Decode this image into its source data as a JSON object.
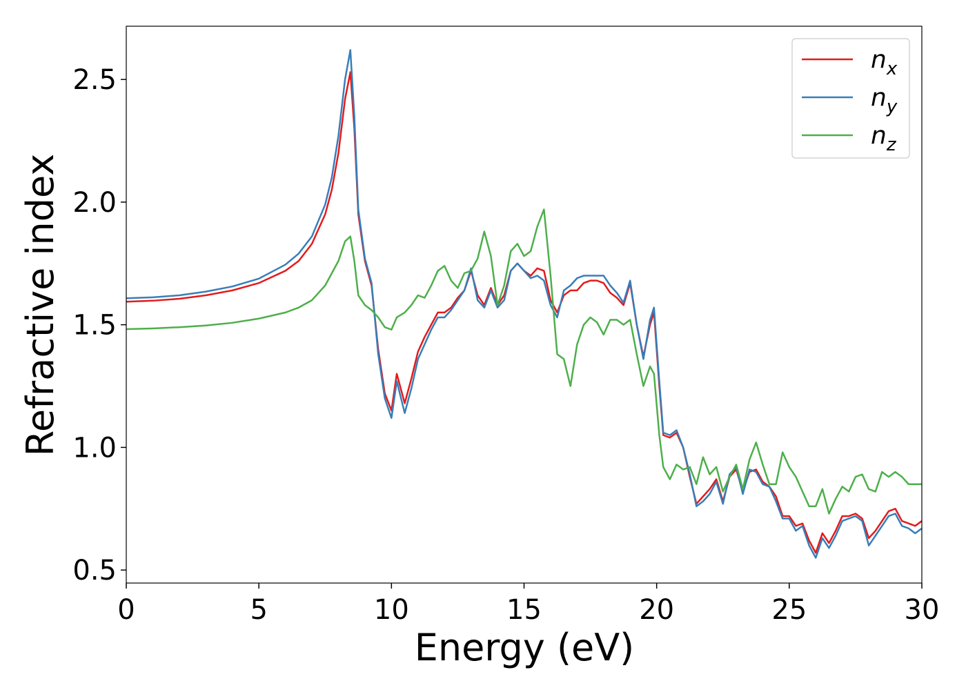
{
  "chart_data": {
    "type": "line",
    "xlabel": "Energy (eV)",
    "ylabel": "Refractive index",
    "x": [
      0,
      1,
      2,
      3,
      4,
      5,
      6,
      6.5,
      7,
      7.5,
      7.75,
      8,
      8.25,
      8.45,
      8.6,
      8.75,
      9,
      9.25,
      9.5,
      9.75,
      10,
      10.2,
      10.5,
      10.75,
      11,
      11.25,
      11.5,
      11.75,
      12,
      12.25,
      12.5,
      12.75,
      13,
      13.25,
      13.5,
      13.75,
      14,
      14.25,
      14.5,
      14.75,
      15,
      15.25,
      15.5,
      15.75,
      16,
      16.25,
      16.5,
      16.75,
      17,
      17.25,
      17.5,
      17.75,
      18,
      18.25,
      18.5,
      18.75,
      19,
      19.25,
      19.5,
      19.75,
      19.9,
      20.1,
      20.25,
      20.5,
      20.75,
      21,
      21.25,
      21.5,
      21.75,
      22,
      22.25,
      22.5,
      22.75,
      23,
      23.25,
      23.5,
      23.75,
      24,
      24.25,
      24.5,
      24.75,
      25,
      25.25,
      25.5,
      25.75,
      26,
      26.25,
      26.5,
      26.75,
      27,
      27.25,
      27.5,
      27.75,
      28,
      28.25,
      28.5,
      28.75,
      29,
      29.25,
      29.5,
      29.75,
      30
    ],
    "series": [
      {
        "name": "nx",
        "color": "#e41a1c",
        "values": [
          1.594,
          1.598,
          1.606,
          1.62,
          1.64,
          1.67,
          1.72,
          1.76,
          1.83,
          1.95,
          2.05,
          2.2,
          2.42,
          2.53,
          2.3,
          1.95,
          1.76,
          1.66,
          1.4,
          1.22,
          1.15,
          1.3,
          1.18,
          1.28,
          1.39,
          1.45,
          1.5,
          1.55,
          1.55,
          1.57,
          1.61,
          1.64,
          1.72,
          1.62,
          1.58,
          1.65,
          1.58,
          1.62,
          1.72,
          1.75,
          1.72,
          1.7,
          1.73,
          1.72,
          1.6,
          1.55,
          1.62,
          1.64,
          1.64,
          1.67,
          1.68,
          1.68,
          1.67,
          1.63,
          1.61,
          1.58,
          1.67,
          1.5,
          1.37,
          1.5,
          1.55,
          1.25,
          1.05,
          1.04,
          1.06,
          1,
          0.88,
          0.77,
          0.8,
          0.83,
          0.87,
          0.78,
          0.88,
          0.91,
          0.82,
          0.9,
          0.91,
          0.86,
          0.84,
          0.8,
          0.72,
          0.72,
          0.68,
          0.69,
          0.62,
          0.57,
          0.65,
          0.61,
          0.66,
          0.72,
          0.72,
          0.73,
          0.71,
          0.63,
          0.66,
          0.7,
          0.74,
          0.75,
          0.7,
          0.69,
          0.68,
          0.7
        ]
      },
      {
        "name": "ny",
        "color": "#377eb8",
        "values": [
          1.608,
          1.612,
          1.62,
          1.635,
          1.656,
          1.688,
          1.745,
          1.79,
          1.86,
          1.99,
          2.1,
          2.27,
          2.5,
          2.62,
          2.35,
          1.97,
          1.77,
          1.67,
          1.38,
          1.2,
          1.12,
          1.27,
          1.14,
          1.24,
          1.36,
          1.42,
          1.48,
          1.53,
          1.53,
          1.56,
          1.6,
          1.64,
          1.73,
          1.6,
          1.57,
          1.64,
          1.57,
          1.6,
          1.72,
          1.75,
          1.72,
          1.69,
          1.7,
          1.68,
          1.58,
          1.53,
          1.64,
          1.66,
          1.69,
          1.7,
          1.7,
          1.7,
          1.7,
          1.66,
          1.63,
          1.59,
          1.68,
          1.5,
          1.36,
          1.52,
          1.57,
          1.27,
          1.06,
          1.05,
          1.07,
          1,
          0.89,
          0.76,
          0.78,
          0.81,
          0.86,
          0.77,
          0.89,
          0.92,
          0.81,
          0.91,
          0.9,
          0.85,
          0.84,
          0.78,
          0.71,
          0.71,
          0.66,
          0.68,
          0.6,
          0.55,
          0.63,
          0.59,
          0.64,
          0.7,
          0.71,
          0.72,
          0.7,
          0.6,
          0.64,
          0.68,
          0.72,
          0.73,
          0.68,
          0.67,
          0.65,
          0.67
        ]
      },
      {
        "name": "nz",
        "color": "#4daf4a",
        "values": [
          1.482,
          1.485,
          1.49,
          1.497,
          1.508,
          1.525,
          1.55,
          1.57,
          1.6,
          1.66,
          1.71,
          1.76,
          1.84,
          1.86,
          1.76,
          1.62,
          1.58,
          1.56,
          1.53,
          1.49,
          1.48,
          1.53,
          1.55,
          1.58,
          1.62,
          1.61,
          1.66,
          1.72,
          1.74,
          1.68,
          1.65,
          1.71,
          1.72,
          1.77,
          1.88,
          1.78,
          1.58,
          1.66,
          1.8,
          1.83,
          1.78,
          1.8,
          1.9,
          1.97,
          1.7,
          1.38,
          1.36,
          1.25,
          1.42,
          1.5,
          1.53,
          1.51,
          1.46,
          1.52,
          1.52,
          1.5,
          1.52,
          1.38,
          1.25,
          1.33,
          1.3,
          1.05,
          0.92,
          0.87,
          0.93,
          0.91,
          0.92,
          0.85,
          0.96,
          0.89,
          0.92,
          0.82,
          0.88,
          0.93,
          0.83,
          0.95,
          1.02,
          0.93,
          0.85,
          0.85,
          0.98,
          0.92,
          0.88,
          0.82,
          0.76,
          0.76,
          0.83,
          0.73,
          0.79,
          0.84,
          0.82,
          0.88,
          0.89,
          0.83,
          0.82,
          0.9,
          0.88,
          0.9,
          0.88,
          0.85,
          0.85,
          0.85
        ]
      }
    ],
    "xlim": [
      0,
      30
    ],
    "xticks": [
      0,
      5,
      10,
      15,
      20,
      25,
      30
    ],
    "ylim": [
      0.447,
      2.717
    ],
    "yticks": [
      0.5,
      {
        "value": 1,
        "label": "1.0"
      },
      1.5,
      {
        "value": 2,
        "label": "2.0"
      },
      2.5
    ],
    "grid": false,
    "legend": "upper right"
  }
}
